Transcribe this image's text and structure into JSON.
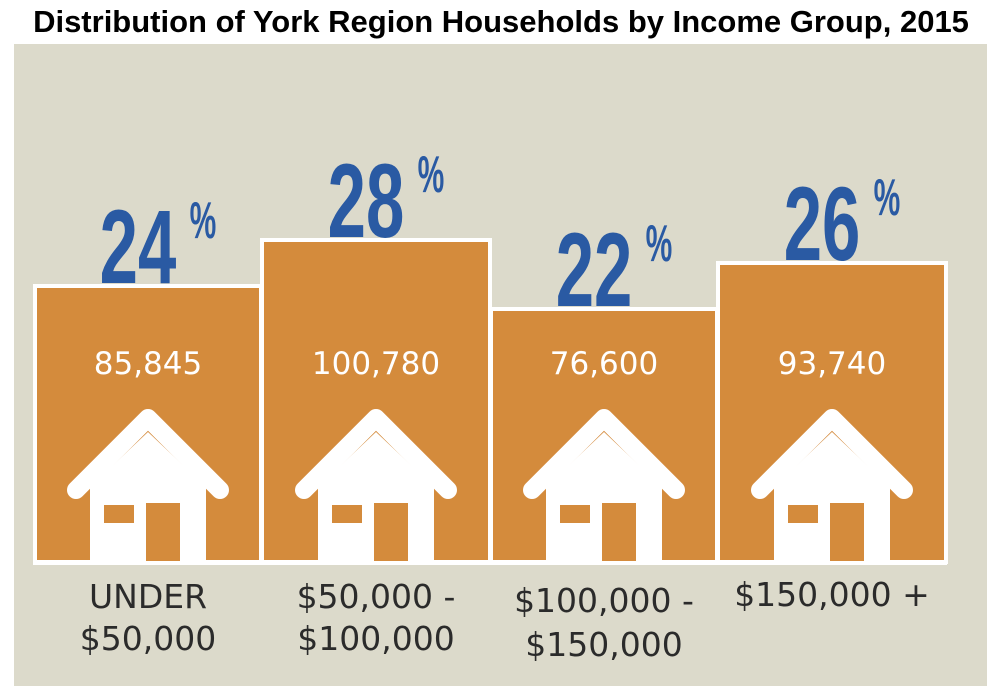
{
  "chart_data": {
    "type": "bar",
    "title": "Distribution of York Region Households by Income Group, 2015",
    "categories": [
      [
        "UNDER",
        "$50,000"
      ],
      [
        "$50,000 -",
        "$100,000"
      ],
      [
        "$100,000 -",
        "$150,000"
      ],
      [
        "$150,000 +"
      ]
    ],
    "percents": [
      24,
      28,
      22,
      26
    ],
    "percent_labels": [
      "24",
      "28",
      "22",
      "26"
    ],
    "percent_symbol": "%",
    "households": [
      85845,
      100780,
      76600,
      93740
    ],
    "household_labels": [
      "85,845",
      "100,780",
      "76,600",
      "93,740"
    ],
    "icon": "house-icon",
    "colors": {
      "background": "#dcdacb",
      "bar": "#d48b3c",
      "percent_text": "#2a5aa3",
      "category_text": "#2b2b2b"
    }
  }
}
